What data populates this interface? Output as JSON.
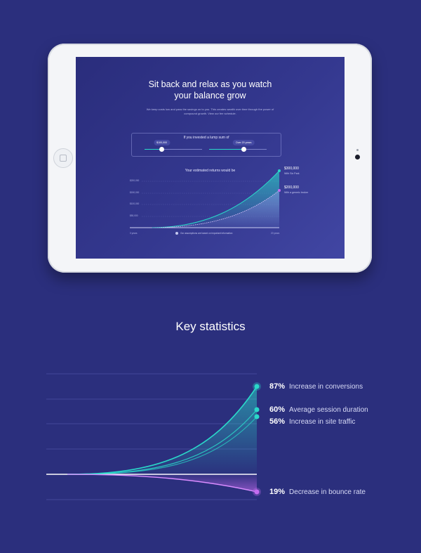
{
  "hero": {
    "title": "Sit back and relax as you watch\nyour balance grow",
    "subtitle": "We keep costs low and pass the savings on to you. This creates wealth over time through the power of compound growth. View our fee schedule."
  },
  "calculator": {
    "title": "If you invested a lump sum of",
    "amount_label": "$100,000",
    "amount_fraction": 0.3,
    "years_label": "Over 20 years",
    "years_fraction": 0.6
  },
  "returns_chart": {
    "title": "Your estimated returns would be",
    "y_ticks": [
      "$200,000",
      "$150,000",
      "$100,000",
      "$50,000"
    ],
    "x_start": "0 years",
    "x_end": "20 years",
    "note": "Our assumptions are based on important information",
    "callouts": [
      {
        "value": "$300,000",
        "label": "With Six Park"
      },
      {
        "value": "$200,000",
        "label": "With a generic broker"
      }
    ]
  },
  "stats": {
    "title": "Key statistics",
    "items": [
      {
        "pct": "87%",
        "label": "Increase in conversions"
      },
      {
        "pct": "60%",
        "label": "Average session duration"
      },
      {
        "pct": "56%",
        "label": "Increase in site traffic"
      },
      {
        "pct": "19%",
        "label": "Decrease in bounce rate"
      }
    ]
  },
  "colors": {
    "background": "#2b2f7d",
    "teal": "#2ad8c9",
    "purple": "#c56cf0",
    "device": "#f4f5f8"
  }
}
